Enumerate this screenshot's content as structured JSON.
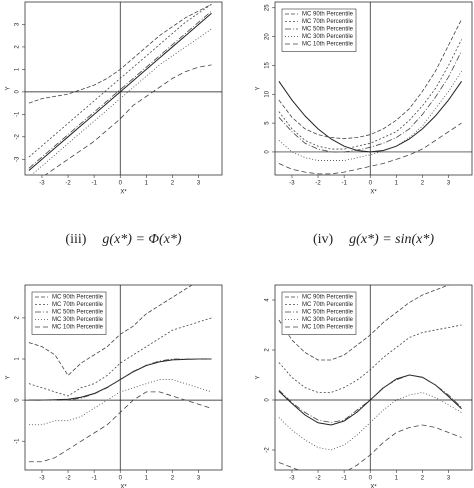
{
  "chart_data": [
    {
      "type": "line",
      "x": [
        -3.5,
        -3,
        -2.5,
        -2,
        -1.5,
        -1,
        -0.5,
        0,
        0.5,
        1,
        1.5,
        2,
        2.5,
        3,
        3.5
      ],
      "xlim": [
        -3.65,
        3.9
      ],
      "xticks": [
        -3,
        -2,
        -1,
        0,
        1,
        2,
        3
      ],
      "ylim": [
        -3.7,
        4.0
      ],
      "yticks": [
        -3,
        -2,
        -1,
        0,
        1,
        2,
        3
      ],
      "xlabel": "X*",
      "ylabel": "Y",
      "hline": 0,
      "vline": 0,
      "series": [
        {
          "color": "#222",
          "values": [
            -3.5,
            -3,
            -2.5,
            -2,
            -1.5,
            -1,
            -0.5,
            0,
            0.5,
            1,
            1.5,
            2,
            2.5,
            3,
            3.5
          ]
        },
        {
          "color": "#444",
          "values": [
            -0.5,
            -0.3,
            -0.2,
            -0.1,
            0.1,
            0.3,
            0.6,
            1.0,
            1.5,
            2.0,
            2.5,
            2.9,
            3.3,
            3.6,
            3.9
          ]
        },
        {
          "color": "#444",
          "values": [
            -2.9,
            -2.4,
            -1.9,
            -1.4,
            -0.9,
            -0.4,
            0.1,
            0.6,
            1.1,
            1.6,
            2.1,
            2.6,
            3.1,
            3.5,
            3.9
          ]
        },
        {
          "color": "#444",
          "values": [
            -3.4,
            -2.9,
            -2.4,
            -1.9,
            -1.4,
            -0.9,
            -0.4,
            0.1,
            0.6,
            1.1,
            1.6,
            2.1,
            2.6,
            3.1,
            3.6
          ]
        },
        {
          "color": "#444",
          "values": [
            -3.8,
            -3.3,
            -2.8,
            -2.3,
            -1.8,
            -1.3,
            -0.8,
            -0.3,
            0.2,
            0.7,
            1.2,
            1.6,
            2.0,
            2.4,
            2.8
          ]
        },
        {
          "color": "#444",
          "values": [
            -4,
            -3.8,
            -3.4,
            -3.0,
            -2.6,
            -2.2,
            -1.7,
            -1.2,
            -0.6,
            -0.2,
            0.2,
            0.6,
            0.9,
            1.1,
            1.2
          ]
        }
      ]
    },
    {
      "type": "line",
      "x": [
        -3.5,
        -3,
        -2.5,
        -2,
        -1.5,
        -1,
        -0.5,
        0,
        0.5,
        1,
        1.5,
        2,
        2.5,
        3,
        3.5
      ],
      "xlim": [
        -3.65,
        3.9
      ],
      "xticks": [
        -3,
        -2,
        -1,
        0,
        1,
        2,
        3
      ],
      "ylim": [
        -4,
        26
      ],
      "yticks": [
        0,
        5,
        10,
        15,
        20,
        25
      ],
      "xlabel": "X*",
      "ylabel": "Y",
      "hline": 0,
      "vline": 0,
      "legend": "upper left",
      "series": [
        {
          "color": "#222",
          "values": [
            12.25,
            9,
            6.25,
            4,
            2.25,
            1,
            0.25,
            0,
            0.25,
            1,
            2.25,
            4,
            6.25,
            9,
            12.25
          ]
        },
        {
          "name": "MC 90th Percentile",
          "color": "#444",
          "values": [
            9,
            6,
            4,
            3,
            2.5,
            2.3,
            2.5,
            3,
            4,
            5.5,
            7.5,
            10.5,
            14,
            18.5,
            23
          ]
        },
        {
          "name": "MC 70th Percentile",
          "color": "#444",
          "values": [
            7,
            4,
            2,
            1,
            0.5,
            0.5,
            1,
            1.5,
            2.5,
            3.5,
            5.5,
            8,
            11,
            15,
            19.5
          ]
        },
        {
          "name": "MC 50th Percentile",
          "color": "#444",
          "values": [
            6,
            3.5,
            1.5,
            0.5,
            0,
            0,
            0.3,
            0.8,
            1.5,
            2.5,
            4,
            6.5,
            9.5,
            13,
            17.5
          ]
        },
        {
          "name": "MC 30th Percentile",
          "color": "#444",
          "values": [
            2,
            0,
            -1,
            -1.5,
            -1.5,
            -1.5,
            -1,
            -0.5,
            0.2,
            1,
            2.5,
            4.5,
            7.5,
            10.5,
            14
          ]
        },
        {
          "name": "MC 10th Percentile",
          "color": "#444",
          "values": [
            -2,
            -3,
            -3.5,
            -3.8,
            -3.8,
            -3.5,
            -3,
            -2.5,
            -2,
            -1.3,
            -0.5,
            0.5,
            2,
            3.5,
            5
          ]
        }
      ]
    },
    {
      "type": "line",
      "caption_label": "(iii)",
      "caption": "g(x*) = Φ(x*)",
      "x": [
        -3.5,
        -3,
        -2.5,
        -2,
        -1.5,
        -1,
        -0.5,
        0,
        0.5,
        1,
        1.5,
        2,
        2.5,
        3,
        3.5
      ],
      "xlim": [
        -3.65,
        3.9
      ],
      "xticks": [
        -3,
        -2,
        -1,
        0,
        1,
        2,
        3
      ],
      "ylim": [
        -1.7,
        2.8
      ],
      "yticks": [
        -1,
        0,
        1,
        2
      ],
      "xlabel": "X*",
      "ylabel": "Y",
      "hline": 0,
      "vline": 0,
      "legend": "upper left",
      "series": [
        {
          "color": "#222",
          "values": [
            0,
            0,
            0.01,
            0.02,
            0.07,
            0.16,
            0.31,
            0.5,
            0.69,
            0.84,
            0.93,
            0.98,
            0.99,
            1,
            1
          ]
        },
        {
          "name": "MC 90th Percentile",
          "color": "#444",
          "values": [
            1.4,
            1.3,
            1.1,
            0.6,
            0.9,
            1.1,
            1.3,
            1.6,
            1.8,
            2.1,
            2.3,
            2.5,
            2.7,
            2.9,
            3.0
          ]
        },
        {
          "name": "MC 70th Percentile",
          "color": "#444",
          "values": [
            0.4,
            0.3,
            0.2,
            0.1,
            0.3,
            0.4,
            0.6,
            0.9,
            1.1,
            1.3,
            1.5,
            1.7,
            1.8,
            1.9,
            2.0
          ]
        },
        {
          "name": "MC 50th Percentile",
          "color": "#444",
          "values": [
            0,
            0,
            0,
            0,
            0.05,
            0.15,
            0.3,
            0.5,
            0.7,
            0.85,
            0.95,
            1,
            1,
            1,
            1
          ]
        },
        {
          "name": "MC 30th Percentile",
          "color": "#444",
          "values": [
            -0.6,
            -0.6,
            -0.5,
            -0.5,
            -0.4,
            -0.2,
            0,
            0.2,
            0.3,
            0.4,
            0.5,
            0.5,
            0.4,
            0.3,
            0.2
          ]
        },
        {
          "name": "MC 10th Percentile",
          "color": "#444",
          "values": [
            -1.5,
            -1.5,
            -1.4,
            -1.2,
            -1,
            -0.8,
            -0.6,
            -0.3,
            0,
            0.2,
            0.2,
            0.1,
            0,
            -0.1,
            -0.2
          ]
        }
      ]
    },
    {
      "type": "line",
      "caption_label": "(iv)",
      "caption": "g(x*) = sin(x*)",
      "x": [
        -3.5,
        -3,
        -2.5,
        -2,
        -1.5,
        -1,
        -0.5,
        0,
        0.5,
        1,
        1.5,
        2,
        2.5,
        3,
        3.5
      ],
      "xlim": [
        -3.65,
        3.9
      ],
      "xticks": [
        -3,
        -2,
        -1,
        0,
        1,
        2,
        3
      ],
      "ylim": [
        -2.8,
        4.6
      ],
      "yticks": [
        -2,
        0,
        2,
        4
      ],
      "xlabel": "X*",
      "ylabel": "Y",
      "hline": 0,
      "vline": 0,
      "legend": "upper left",
      "series": [
        {
          "color": "#222",
          "values": [
            0.35,
            -0.14,
            -0.6,
            -0.91,
            -1,
            -0.84,
            -0.48,
            0,
            0.48,
            0.84,
            1,
            0.91,
            0.6,
            0.14,
            -0.35
          ]
        },
        {
          "name": "MC 90th Percentile",
          "color": "#444",
          "values": [
            3.2,
            2.4,
            1.9,
            1.6,
            1.6,
            1.8,
            2.2,
            2.6,
            3.1,
            3.5,
            3.9,
            4.2,
            4.4,
            4.6,
            4.7
          ]
        },
        {
          "name": "MC 70th Percentile",
          "color": "#444",
          "values": [
            1.5,
            0.9,
            0.5,
            0.3,
            0.3,
            0.5,
            0.8,
            1.2,
            1.7,
            2.1,
            2.5,
            2.7,
            2.8,
            2.9,
            3
          ]
        },
        {
          "name": "MC 50th Percentile",
          "color": "#444",
          "values": [
            0.4,
            -0.1,
            -0.5,
            -0.8,
            -0.9,
            -0.8,
            -0.4,
            0,
            0.5,
            0.8,
            1,
            0.9,
            0.6,
            0.2,
            -0.3
          ]
        },
        {
          "name": "MC 30th Percentile",
          "color": "#444",
          "values": [
            -0.7,
            -1.2,
            -1.6,
            -1.9,
            -2,
            -1.8,
            -1.4,
            -0.9,
            -0.4,
            0,
            0.2,
            0.3,
            0.1,
            -0.2,
            -0.5
          ]
        },
        {
          "name": "MC 10th Percentile",
          "color": "#444",
          "values": [
            -2.5,
            -2.7,
            -2.9,
            -3,
            -3,
            -2.9,
            -2.6,
            -2.2,
            -1.7,
            -1.3,
            -1.1,
            -1,
            -1.1,
            -1.3,
            -1.5
          ]
        }
      ]
    }
  ]
}
